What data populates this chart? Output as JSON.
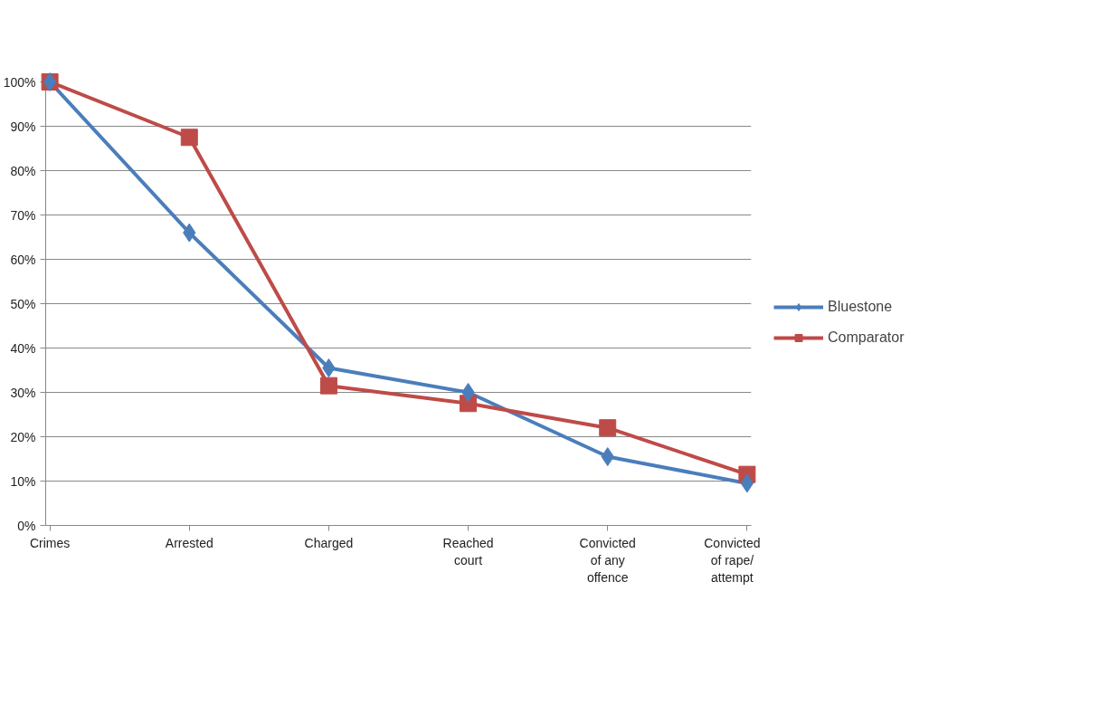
{
  "chart_data": {
    "type": "line",
    "categories": [
      "Crimes",
      "Arrested",
      "Charged",
      "Reached\ncourt",
      "Convicted\nof any\noffence",
      "Convicted\nof rape/\nattempt"
    ],
    "series": [
      {
        "name": "Bluestone",
        "color": "#4a7ebb",
        "marker": "diamond",
        "values": [
          100,
          66,
          35.5,
          30,
          15.5,
          9.5
        ]
      },
      {
        "name": "Comparator",
        "color": "#be4b48",
        "marker": "square",
        "values": [
          100,
          87.5,
          31.5,
          27.5,
          22,
          11.5
        ]
      }
    ],
    "ylim": [
      0,
      100
    ],
    "yticks": [
      {
        "value": 0,
        "label": "0%"
      },
      {
        "value": 10,
        "label": "10%"
      },
      {
        "value": 20,
        "label": "20%"
      },
      {
        "value": 30,
        "label": "30%"
      },
      {
        "value": 40,
        "label": "40%"
      },
      {
        "value": 50,
        "label": "50%"
      },
      {
        "value": 60,
        "label": "60%"
      },
      {
        "value": 70,
        "label": "70%"
      },
      {
        "value": 80,
        "label": "80%"
      },
      {
        "value": 90,
        "label": "90%"
      },
      {
        "value": 100,
        "label": "100%"
      }
    ],
    "grid": "y",
    "legend": "right",
    "line_style": "solid"
  }
}
